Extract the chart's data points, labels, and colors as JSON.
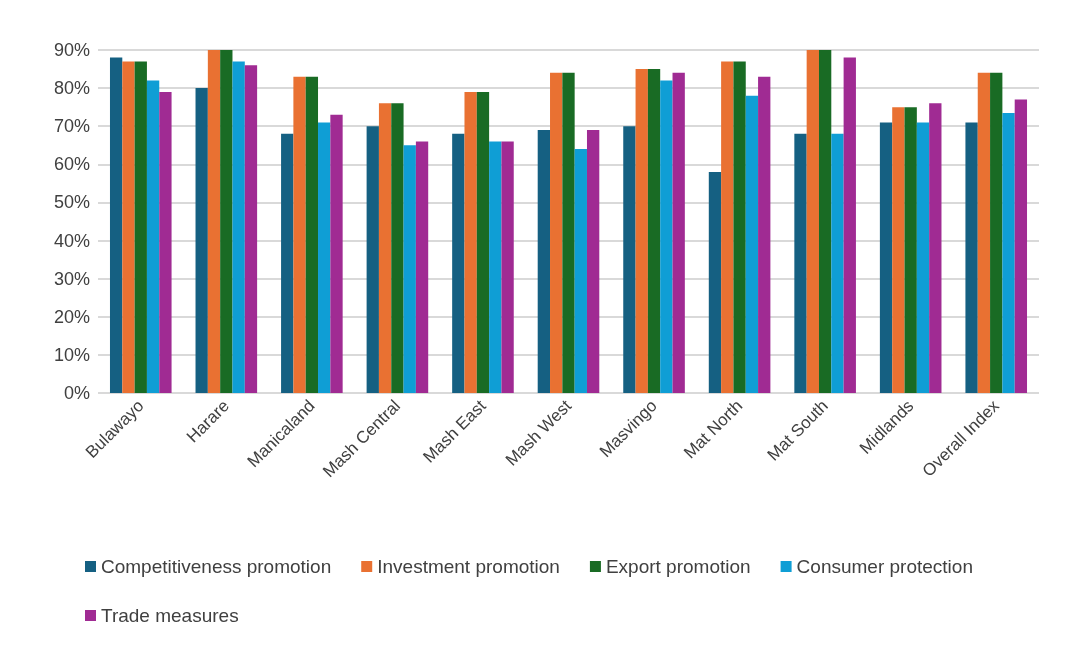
{
  "chart_data": {
    "type": "bar",
    "categories": [
      "Bulawayo",
      "Harare",
      "Manicaland",
      "Mash Central",
      "Mash East",
      "Mash West",
      "Masvingo",
      "Mat North",
      "Mat South",
      "Midlands",
      "Overall Index"
    ],
    "series": [
      {
        "name": "Competitiveness promotion",
        "color": "#156082",
        "values": [
          88,
          80,
          68,
          70,
          68,
          69,
          70,
          58,
          68,
          71,
          71
        ]
      },
      {
        "name": "Investment promotion",
        "color": "#e97132",
        "values": [
          87,
          90,
          83,
          76,
          79,
          84,
          85,
          87,
          90,
          75,
          84
        ]
      },
      {
        "name": "Export promotion",
        "color": "#196b24",
        "values": [
          87,
          90,
          83,
          76,
          79,
          84,
          85,
          87,
          90,
          75,
          84
        ]
      },
      {
        "name": "Consumer protection",
        "color": "#0f9ed5",
        "values": [
          82,
          87,
          71,
          65,
          66,
          64,
          82,
          78,
          68,
          71,
          73.5
        ]
      },
      {
        "name": "Trade measures",
        "color": "#a02b93",
        "values": [
          79,
          86,
          73,
          66,
          66,
          69,
          84,
          83,
          88,
          76,
          77
        ]
      }
    ],
    "ylim": [
      0,
      90
    ],
    "yticks": [
      {
        "value": 0,
        "label": "0%"
      },
      {
        "value": 10,
        "label": "10%"
      },
      {
        "value": 20,
        "label": "20%"
      },
      {
        "value": 30,
        "label": "30%"
      },
      {
        "value": 40,
        "label": "40%"
      },
      {
        "value": 50,
        "label": "50%"
      },
      {
        "value": 60,
        "label": "60%"
      },
      {
        "value": 70,
        "label": "70%"
      },
      {
        "value": 80,
        "label": "80%"
      },
      {
        "value": 90,
        "label": "90%"
      }
    ],
    "grid": "y",
    "legend": "bottom"
  }
}
